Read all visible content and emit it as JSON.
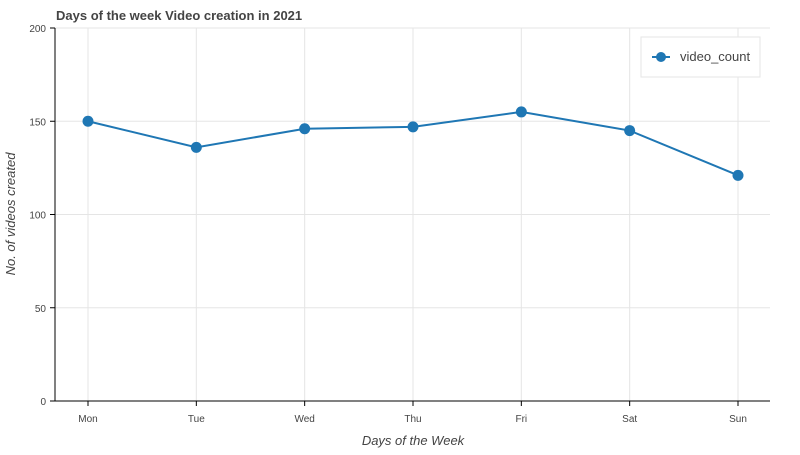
{
  "chart_data": {
    "type": "line",
    "title": "Days of the week Video creation in 2021",
    "xlabel": "Days of the Week",
    "ylabel": "No. of videos created",
    "categories": [
      "Mon",
      "Tue",
      "Wed",
      "Thu",
      "Fri",
      "Sat",
      "Sun"
    ],
    "series": [
      {
        "name": "video_count",
        "values": [
          150,
          136,
          146,
          147,
          155,
          145,
          121
        ]
      }
    ],
    "ylim": [
      0,
      200
    ],
    "yticks": [
      "0",
      "50",
      "100",
      "150",
      "200"
    ],
    "grid": true,
    "legend_position": "top-right",
    "colors": {
      "series": "#1f77b4",
      "grid": "#e5e5e5",
      "text": "#444444"
    }
  }
}
